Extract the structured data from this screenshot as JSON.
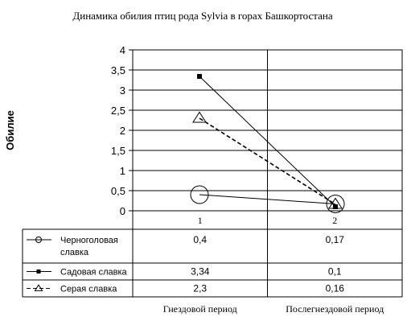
{
  "chart_data": {
    "type": "line",
    "title": "Динамика обилия птиц рода Sylvia в горах Башкортостана",
    "ylabel": "Обилие",
    "xlabel": "",
    "ylim": [
      0,
      4
    ],
    "yticks": [
      "0",
      "0,5",
      "1",
      "1,5",
      "2",
      "2,5",
      "3",
      "3,5",
      "4"
    ],
    "ytick_values": [
      0,
      0.5,
      1,
      1.5,
      2,
      2.5,
      3,
      3.5,
      4
    ],
    "x_numbers": [
      "1",
      "2"
    ],
    "categories": [
      "Гнездовой период",
      "Послегнездовой период"
    ],
    "grid": true,
    "legend": "table-below",
    "series": [
      {
        "name_lines": [
          "Черноголовая",
          "славка"
        ],
        "values": [
          0.4,
          0.17
        ],
        "value_labels": [
          "0,4",
          "0,17"
        ],
        "marker": "circle",
        "line_style": "solid"
      },
      {
        "name_lines": [
          "Садовая славка"
        ],
        "values": [
          3.34,
          0.1
        ],
        "value_labels": [
          "3,34",
          "0,1"
        ],
        "marker": "square",
        "line_style": "solid"
      },
      {
        "name_lines": [
          "Серая славка"
        ],
        "values": [
          2.3,
          0.16
        ],
        "value_labels": [
          "2,3",
          "0,16"
        ],
        "marker": "triangle",
        "line_style": "dashed"
      }
    ]
  }
}
